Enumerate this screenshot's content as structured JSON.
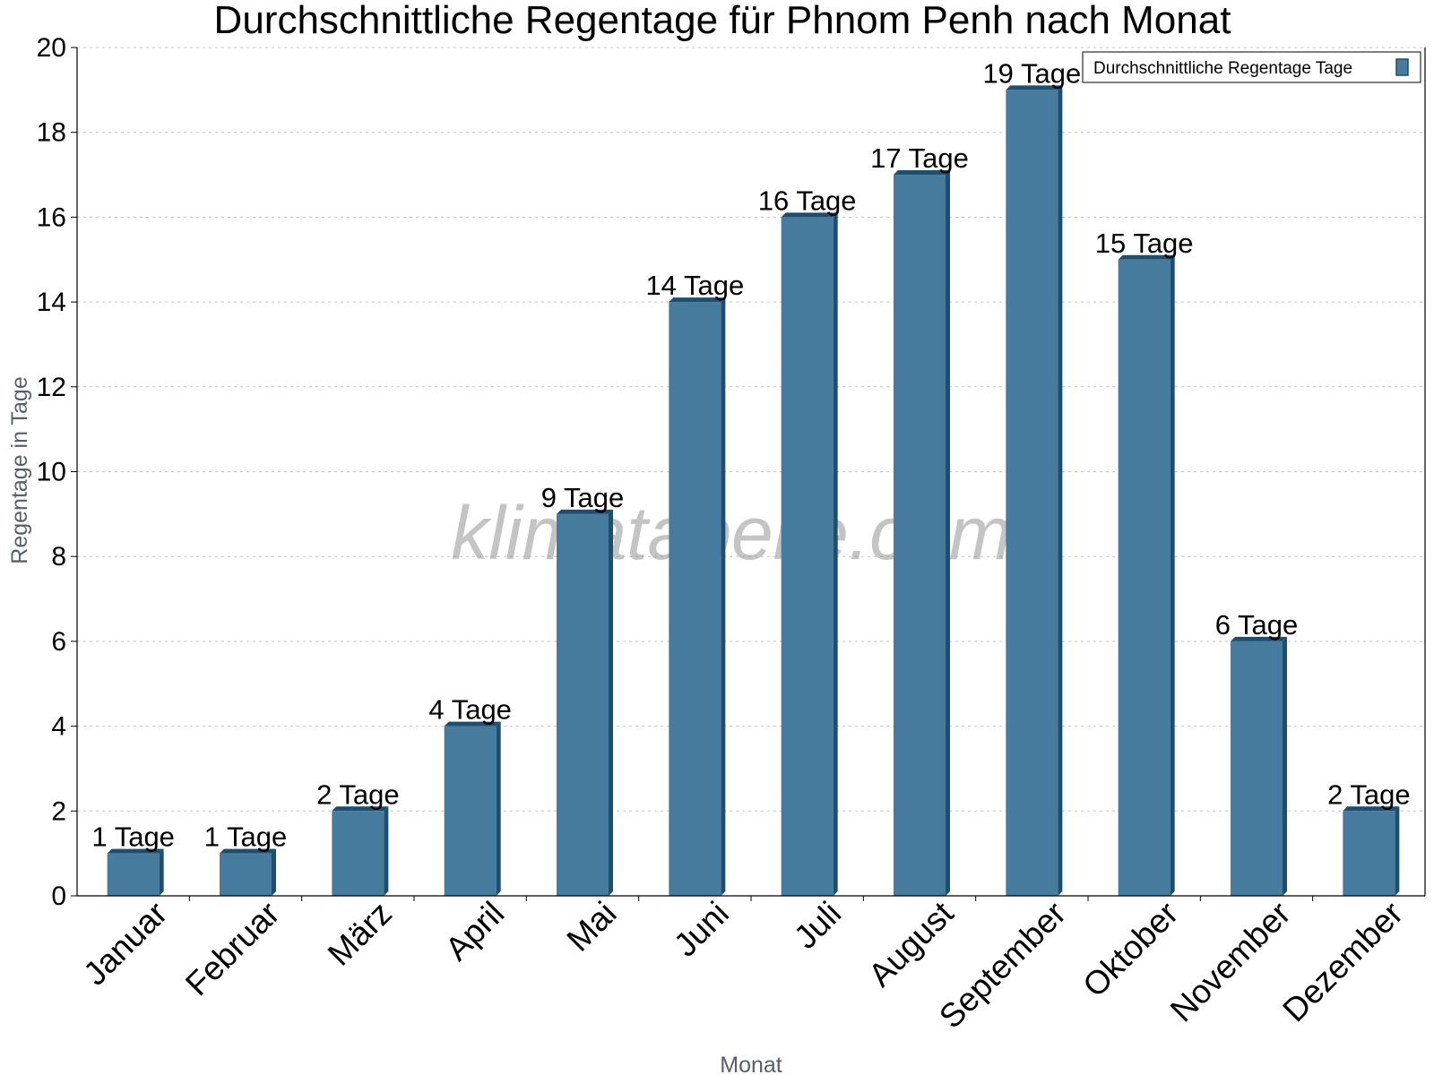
{
  "chart_data": {
    "type": "bar",
    "title": "Durchschnittliche Regentage für Phnom Penh nach Monat",
    "xlabel": "Monat",
    "ylabel": "Regentage in Tage",
    "categories": [
      "Januar",
      "Februar",
      "März",
      "April",
      "Mai",
      "Juni",
      "Juli",
      "August",
      "September",
      "Oktober",
      "November",
      "Dezember"
    ],
    "series": [
      {
        "name": "Durchschnittliche Regentage Tage",
        "values": [
          1,
          1,
          2,
          4,
          9,
          14,
          16,
          17,
          19,
          15,
          6,
          2
        ],
        "labels": [
          "1 Tage",
          "1 Tage",
          "2 Tage",
          "4 Tage",
          "9 Tage",
          "14 Tage",
          "16 Tage",
          "17 Tage",
          "19 Tage",
          "15 Tage",
          "6 Tage",
          "2 Tage"
        ],
        "color": "#467b9e",
        "shade_color": "#1e4d6e"
      }
    ],
    "ylim": [
      0,
      20
    ],
    "yticks": [
      "0",
      "2",
      "4",
      "6",
      "8",
      "10",
      "12",
      "14",
      "16",
      "18",
      "20"
    ],
    "grid": true,
    "legend_position": "top-right"
  },
  "watermark": "klimatabelle.com"
}
